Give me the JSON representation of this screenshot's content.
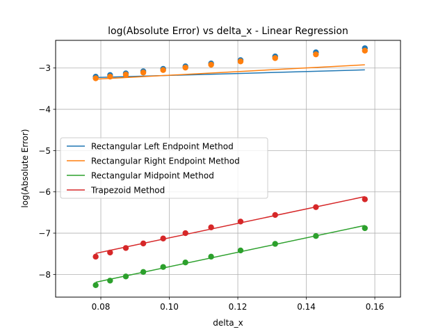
{
  "chart_data": {
    "type": "scatter",
    "title": "log(Absolute Error) vs delta_x - Linear Regression",
    "xlabel": "delta_x",
    "ylabel": "log(Absolute Error)",
    "xlim": [
      0.0668,
      0.1675
    ],
    "ylim": [
      -8.55,
      -2.33
    ],
    "xticks": [
      0.08,
      0.1,
      0.12,
      0.14,
      0.16
    ],
    "xtick_labels": [
      "0.08",
      "0.10",
      "0.12",
      "0.14",
      "0.16"
    ],
    "yticks": [
      -8,
      -7,
      -6,
      -5,
      -4,
      -3
    ],
    "ytick_labels": [
      "−8",
      "−7",
      "−6",
      "−5",
      "−4",
      "−3"
    ],
    "grid": true,
    "legend": "center-left",
    "x": [
      0.0785,
      0.0827,
      0.0873,
      0.0924,
      0.0982,
      0.1047,
      0.1122,
      0.1208,
      0.1309,
      0.1428,
      0.1571
    ],
    "series": [
      {
        "name": "Rectangular Left Endpoint Method",
        "color": "#1f77b4",
        "values": [
          -3.21,
          -3.17,
          -3.13,
          -3.08,
          -3.02,
          -2.96,
          -2.89,
          -2.81,
          -2.72,
          -2.62,
          -2.52
        ],
        "fit": [
          -3.23,
          2.36
        ]
      },
      {
        "name": "Rectangular Right Endpoint Method",
        "color": "#ff7f0e",
        "values": [
          -3.25,
          -3.21,
          -3.16,
          -3.11,
          -3.05,
          -2.99,
          -2.92,
          -2.84,
          -2.76,
          -2.67,
          -2.58
        ],
        "fit": [
          -3.27,
          4.42
        ]
      },
      {
        "name": "Rectangular Midpoint Method",
        "color": "#2ca02c",
        "values": [
          -8.26,
          -8.15,
          -8.05,
          -7.94,
          -7.82,
          -7.71,
          -7.57,
          -7.42,
          -7.26,
          -7.07,
          -6.88
        ],
        "fit": [
          -8.19,
          17.5
        ]
      },
      {
        "name": "Trapezoid Method",
        "color": "#d62728",
        "values": [
          -7.57,
          -7.47,
          -7.36,
          -7.25,
          -7.13,
          -7.0,
          -6.86,
          -6.72,
          -6.56,
          -6.37,
          -6.18
        ],
        "fit": [
          -7.49,
          17.5
        ]
      }
    ]
  }
}
